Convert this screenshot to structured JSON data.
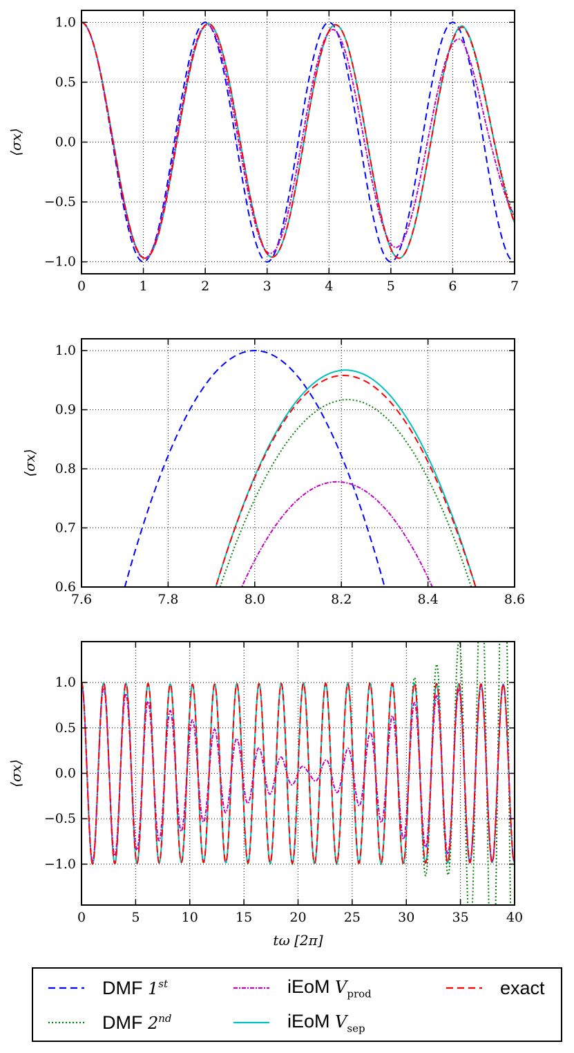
{
  "chart_data": [
    {
      "type": "line",
      "panel": "top",
      "xlabel": "",
      "ylabel": "⟨σx⟩",
      "xlim": [
        0,
        7
      ],
      "ylim": [
        -1.1,
        1.1
      ],
      "xticks": [
        "0",
        "1",
        "2",
        "3",
        "4",
        "5",
        "6",
        "7"
      ],
      "yticks": [
        "−1.0",
        "−0.5",
        "0.0",
        "0.5",
        "1.0"
      ],
      "grid": true,
      "series": [
        {
          "name": "DMF 1st",
          "color": "#0000ff",
          "style": "dashed",
          "x": [
            0,
            0.5,
            1.0,
            1.5,
            2.0,
            2.5,
            3.0,
            3.5,
            4.0,
            4.5,
            5.0,
            5.5,
            6.0,
            6.5,
            7.0
          ],
          "y": [
            1.0,
            0.0,
            -1.0,
            0.0,
            1.0,
            0.0,
            -1.0,
            0.0,
            1.0,
            0.0,
            -1.0,
            0.0,
            1.0,
            0.0,
            -1.0
          ]
        },
        {
          "name": "DMF 2nd",
          "color": "#008000",
          "style": "dotted",
          "x": [
            0,
            0.52,
            1.03,
            1.55,
            2.05,
            2.57,
            3.08,
            3.6,
            4.1,
            4.62,
            5.13,
            5.65,
            6.16,
            6.7,
            7.0
          ],
          "y": [
            1.0,
            0.0,
            -0.97,
            0.0,
            0.99,
            0.0,
            -0.96,
            0.0,
            0.98,
            0.0,
            -0.97,
            0.0,
            0.97,
            0.0,
            -0.75
          ]
        },
        {
          "name": "iEoM Vprod",
          "color": "#bf00bf",
          "style": "dashdot",
          "x": [
            0,
            0.52,
            1.03,
            1.55,
            2.05,
            2.57,
            3.07,
            3.58,
            4.08,
            4.6,
            5.1,
            5.62,
            6.14,
            6.66,
            7.0
          ],
          "y": [
            1.0,
            0.0,
            -0.97,
            0.0,
            0.98,
            0.0,
            -0.93,
            0.0,
            0.94,
            0.0,
            -0.88,
            0.0,
            0.86,
            0.0,
            -0.65
          ]
        },
        {
          "name": "iEoM Vsep",
          "color": "#00bfbf",
          "style": "solid",
          "x": [
            0,
            0.52,
            1.03,
            1.55,
            2.05,
            2.57,
            3.08,
            3.6,
            4.1,
            4.62,
            5.13,
            5.65,
            6.16,
            6.7,
            7.0
          ],
          "y": [
            1.0,
            0.0,
            -0.97,
            0.0,
            0.99,
            0.0,
            -0.96,
            0.0,
            0.98,
            0.0,
            -0.97,
            0.0,
            0.97,
            0.0,
            -0.8
          ]
        },
        {
          "name": "exact",
          "color": "#ff0000",
          "style": "dashed",
          "x": [
            0,
            0.52,
            1.03,
            1.55,
            2.05,
            2.57,
            3.08,
            3.6,
            4.1,
            4.62,
            5.13,
            5.65,
            6.16,
            6.7,
            7.0
          ],
          "y": [
            1.0,
            0.0,
            -0.97,
            0.0,
            0.99,
            0.0,
            -0.96,
            0.0,
            0.98,
            0.0,
            -0.97,
            0.0,
            0.96,
            0.0,
            -0.8
          ]
        }
      ]
    },
    {
      "type": "line",
      "panel": "middle",
      "xlabel": "",
      "ylabel": "⟨σx⟩",
      "xlim": [
        7.6,
        8.6
      ],
      "ylim": [
        0.6,
        1.02
      ],
      "xticks": [
        "7.6",
        "7.8",
        "8.0",
        "8.2",
        "8.4",
        "8.6"
      ],
      "yticks": [
        "0.6",
        "0.7",
        "0.8",
        "0.9",
        "1.0"
      ],
      "grid": true,
      "series": [
        {
          "name": "DMF 1st",
          "color": "#0000ff",
          "style": "dashed",
          "peak_x": 8.0,
          "peak_y": 1.0,
          "x": [
            7.7,
            7.8,
            7.9,
            8.0,
            8.1,
            8.2,
            8.3
          ],
          "y": [
            0.6,
            0.81,
            0.95,
            1.0,
            0.95,
            0.81,
            0.6
          ]
        },
        {
          "name": "DMF 2nd",
          "color": "#008000",
          "style": "dotted",
          "peak_x": 8.215,
          "peak_y": 0.917,
          "x": [
            7.92,
            8.0,
            8.1,
            8.215,
            8.3,
            8.4,
            8.5
          ],
          "y": [
            0.6,
            0.77,
            0.88,
            0.917,
            0.9,
            0.78,
            0.6
          ]
        },
        {
          "name": "iEoM Vprod",
          "color": "#bf00bf",
          "style": "dashdot",
          "peak_x": 8.19,
          "peak_y": 0.778,
          "x": [
            7.97,
            8.05,
            8.1,
            8.19,
            8.3,
            8.35,
            8.41
          ],
          "y": [
            0.6,
            0.71,
            0.75,
            0.778,
            0.74,
            0.69,
            0.6
          ]
        },
        {
          "name": "iEoM Vsep",
          "color": "#00bfbf",
          "style": "solid",
          "peak_x": 8.21,
          "peak_y": 0.967,
          "x": [
            7.91,
            8.0,
            8.1,
            8.21,
            8.3,
            8.4,
            8.51
          ],
          "y": [
            0.6,
            0.79,
            0.92,
            0.967,
            0.93,
            0.82,
            0.6
          ]
        },
        {
          "name": "exact",
          "color": "#ff0000",
          "style": "dashed",
          "peak_x": 8.205,
          "peak_y": 0.958,
          "x": [
            7.91,
            8.0,
            8.1,
            8.205,
            8.3,
            8.4,
            8.51
          ],
          "y": [
            0.6,
            0.79,
            0.91,
            0.958,
            0.92,
            0.81,
            0.6
          ]
        }
      ]
    },
    {
      "type": "line",
      "panel": "bottom",
      "xlabel": "tω [2π]",
      "ylabel": "⟨σx⟩",
      "xlim": [
        0,
        40
      ],
      "ylim": [
        -1.45,
        1.45
      ],
      "xticks": [
        "0",
        "5",
        "10",
        "15",
        "20",
        "25",
        "30",
        "35",
        "40"
      ],
      "yticks": [
        "−1.0",
        "−0.5",
        "0.0",
        "0.5",
        "1.0"
      ],
      "grid": true,
      "series": [
        {
          "name": "DMF 2nd",
          "color": "#008000",
          "style": "dotted",
          "period": 2.05,
          "amplitude_notes": "stable near 1.0 until t≈30, then grows past axis limits after t≈34",
          "x": [
            0,
            10,
            20,
            30,
            34.2,
            35.1,
            36.5,
            38.5,
            40
          ],
          "y": [
            1.0,
            0.98,
            1.0,
            1.0,
            1.3,
            -1.2,
            1.45,
            -1.45,
            1.45
          ]
        },
        {
          "name": "iEoM Vprod",
          "color": "#bf00bf",
          "style": "dashdot",
          "period": 2.05,
          "amplitude_notes": "envelope decays to ≈0.05 near t≈21 and revives toward 0.97 by t≈36",
          "x": [
            0,
            5,
            10,
            15,
            21,
            25,
            30,
            36,
            40
          ],
          "y": [
            1.0,
            0.85,
            0.6,
            0.35,
            0.05,
            0.3,
            0.75,
            0.97,
            0.97
          ]
        },
        {
          "name": "iEoM Vsep",
          "color": "#00bfbf",
          "style": "solid",
          "period": 2.05,
          "x": [
            0,
            10,
            20,
            30,
            40
          ],
          "y": [
            1.0,
            0.98,
            0.99,
            0.99,
            0.98
          ]
        },
        {
          "name": "exact",
          "color": "#ff0000",
          "style": "dashed",
          "period": 2.05,
          "x": [
            0,
            10,
            20,
            30,
            40
          ],
          "y": [
            1.0,
            0.98,
            0.99,
            0.99,
            0.98
          ]
        }
      ]
    }
  ],
  "legend": {
    "items": [
      {
        "key": "dmf1",
        "label": "DMF ",
        "math": "1",
        "sup": "st",
        "sub": "",
        "color": "#0000ff",
        "dash": "10,6"
      },
      {
        "key": "dmf2",
        "label": "DMF ",
        "math": "2",
        "sup": "nd",
        "sub": "",
        "color": "#008000",
        "dash": "2,3"
      },
      {
        "key": "vprod",
        "label": "iEoM ",
        "math": "V",
        "sup": "",
        "sub": "prod",
        "color": "#bf00bf",
        "dash": "6,2,2,2"
      },
      {
        "key": "vsep",
        "label": "iEoM ",
        "math": "V",
        "sup": "",
        "sub": "sep",
        "color": "#00bfbf",
        "dash": ""
      },
      {
        "key": "exact",
        "label": "exact",
        "math": "",
        "sup": "",
        "sub": "",
        "color": "#ff0000",
        "dash": "10,6"
      }
    ]
  }
}
